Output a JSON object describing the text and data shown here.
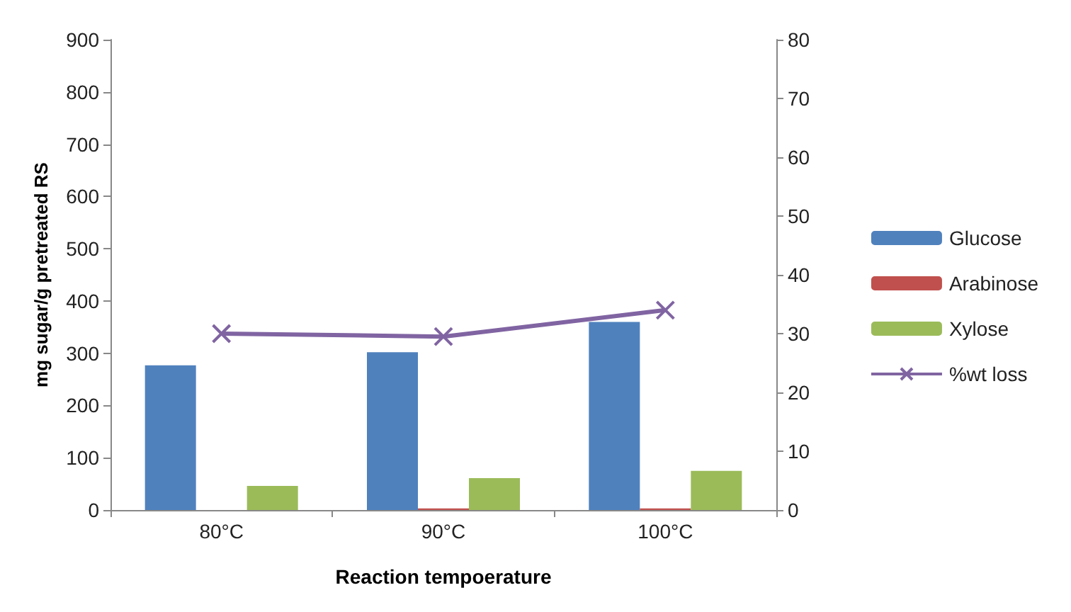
{
  "chart_data": {
    "type": "bar",
    "xlabel": "Reaction tempoerature",
    "ylabel": "mg sugar/g pretreated RS",
    "categories": [
      "80°C",
      "90°C",
      "100°C"
    ],
    "series": [
      {
        "name": "Glucose",
        "color": "#4f81bd",
        "values": [
          277,
          302,
          360
        ]
      },
      {
        "name": "Arabinose",
        "color": "#c0504d",
        "values": [
          0,
          3,
          3
        ]
      },
      {
        "name": "Xylose",
        "color": "#9bbb59",
        "values": [
          46,
          61,
          75
        ]
      },
      {
        "name": "%wt loss",
        "type": "line",
        "axis": "y2",
        "color": "#8064a2",
        "marker": "cross",
        "values": [
          30,
          29.5,
          34
        ]
      }
    ],
    "ylim": [
      0,
      900
    ],
    "yticks": [
      0,
      100,
      200,
      300,
      400,
      500,
      600,
      700,
      800,
      900
    ],
    "y2lim": [
      0,
      80
    ],
    "y2ticks": [
      0,
      10,
      20,
      30,
      40,
      50,
      60,
      70,
      80
    ],
    "legend": "right",
    "grid": false
  }
}
